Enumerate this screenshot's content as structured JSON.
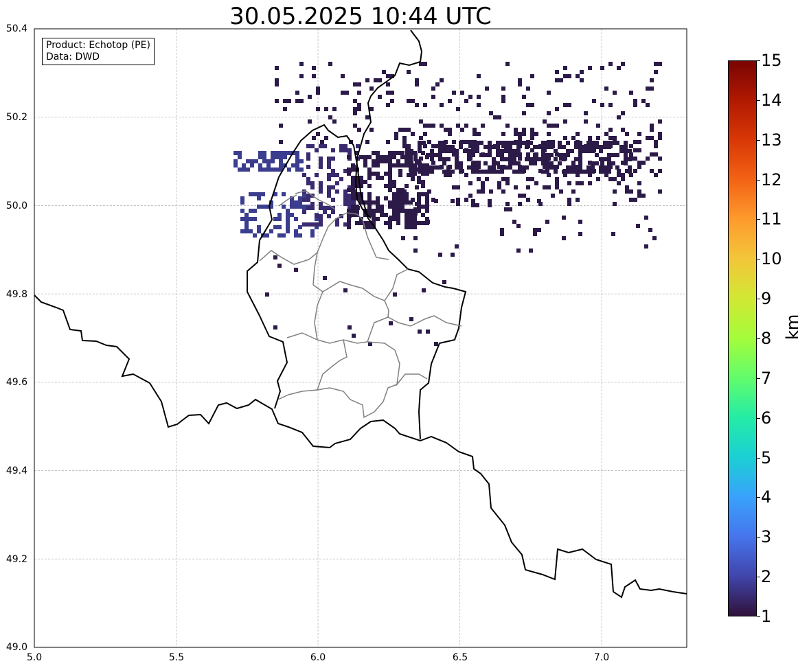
{
  "title": "30.05.2025 10:44 UTC",
  "info": {
    "product": "Product: Echotop (PE)",
    "data": "Data: DWD"
  },
  "map": {
    "lon_range": [
      5.0,
      7.3
    ],
    "lat_range": [
      49.0,
      50.4
    ],
    "grid": true,
    "x_ticks": [
      "5.0",
      "5.5",
      "6.0",
      "6.5",
      "7.0"
    ],
    "y_ticks": [
      "50.4",
      "50.2",
      "50.0",
      "49.8",
      "49.6",
      "49.4",
      "49.2",
      "49.0"
    ]
  },
  "colorbar": {
    "label": "km",
    "min": 1,
    "max": 15,
    "ticks": [
      "15",
      "14",
      "13",
      "12",
      "11",
      "10",
      "9",
      "8",
      "7",
      "6",
      "5",
      "4",
      "3",
      "2",
      "1"
    ],
    "colors": [
      "#30123b",
      "#4145ab",
      "#4675ed",
      "#39a2fc",
      "#1bcfd4",
      "#24eca6",
      "#61fc6c",
      "#a4fc3b",
      "#d1e834",
      "#f3c63a",
      "#fe9b2d",
      "#f36315",
      "#d93806",
      "#b11901",
      "#7a0402"
    ]
  }
}
